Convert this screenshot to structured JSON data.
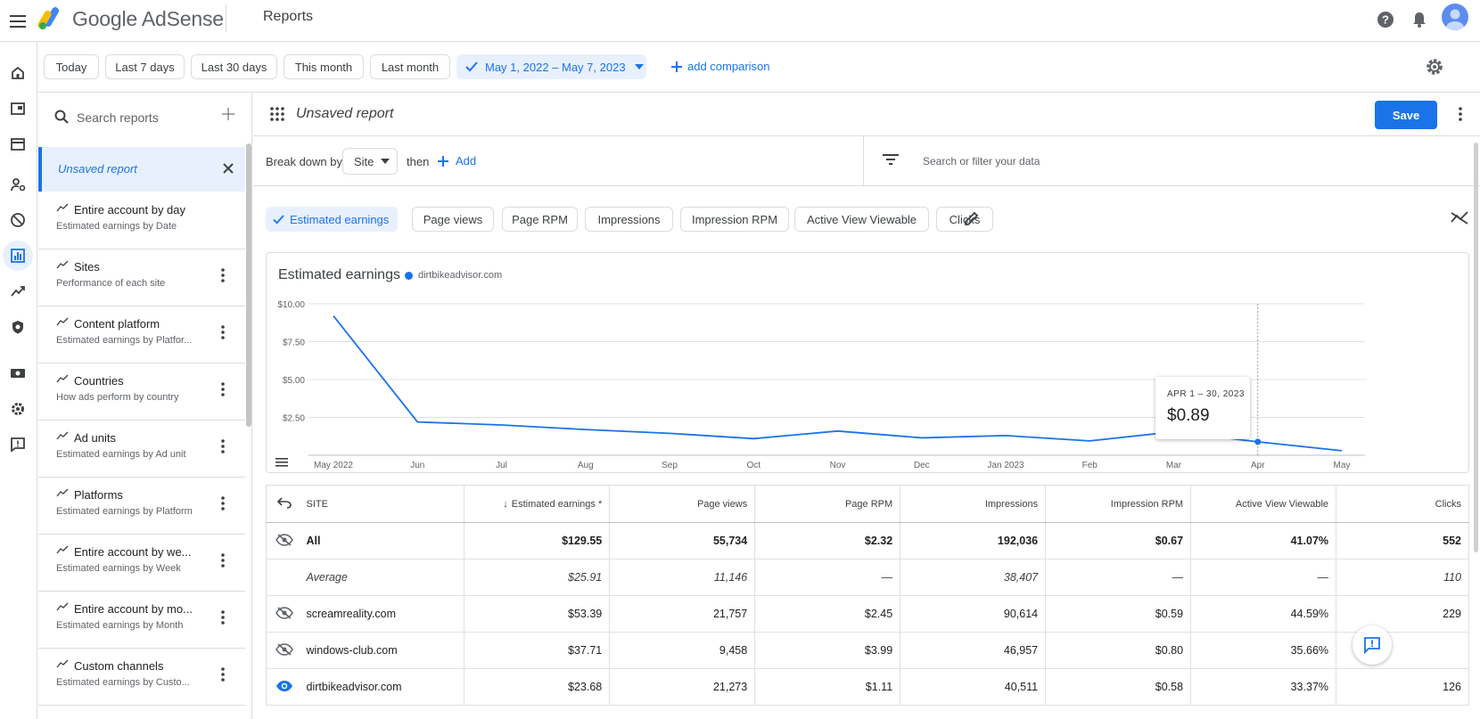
{
  "app": {
    "brand": "Google AdSense",
    "page_title": "Reports"
  },
  "date_bar": {
    "chips": [
      "Today",
      "Last 7 days",
      "Last 30 days",
      "This month",
      "Last month"
    ],
    "selected_range": "May 1, 2022 – May 7, 2023",
    "add_comparison": "add comparison"
  },
  "sidebar": {
    "search_placeholder": "Search reports",
    "active_item": "Unsaved report",
    "items": [
      {
        "title": "Entire account by day",
        "subtitle": "Estimated earnings by Date"
      },
      {
        "title": "Sites",
        "subtitle": "Performance of each site"
      },
      {
        "title": "Content platform",
        "subtitle": "Estimated earnings by Platfor..."
      },
      {
        "title": "Countries",
        "subtitle": "How ads perform by country"
      },
      {
        "title": "Ad units",
        "subtitle": "Estimated earnings by Ad unit"
      },
      {
        "title": "Platforms",
        "subtitle": "Estimated earnings by Platform"
      },
      {
        "title": "Entire account by we...",
        "subtitle": "Estimated earnings by Week"
      },
      {
        "title": "Entire account by mo...",
        "subtitle": "Estimated earnings by Month"
      },
      {
        "title": "Custom channels",
        "subtitle": "Estimated earnings by Custo..."
      }
    ]
  },
  "report": {
    "title": "Unsaved report",
    "save_label": "Save",
    "breakdown_label": "Break down by",
    "breakdown_value": "Site",
    "then_label": "then",
    "add_label": "Add",
    "filter_placeholder": "Search or filter your data"
  },
  "metrics": [
    "Estimated earnings",
    "Page views",
    "Page RPM",
    "Impressions",
    "Impression RPM",
    "Active View Viewable",
    "Clicks"
  ],
  "chart_data": {
    "type": "line",
    "title": "Estimated earnings",
    "series": [
      {
        "name": "dirtbikeadvisor.com",
        "color": "#1a73e8",
        "values": [
          9.2,
          2.2,
          2.0,
          1.7,
          1.45,
          1.1,
          1.6,
          1.15,
          1.3,
          0.95,
          1.55,
          0.89,
          0.3
        ]
      }
    ],
    "x_tick_labels": [
      "May 2022",
      "Jun",
      "Jul",
      "Aug",
      "Sep",
      "Oct",
      "Nov",
      "Dec",
      "Jan 2023",
      "Feb",
      "Mar",
      "Apr",
      "May"
    ],
    "y_ticks": [
      {
        "value": 2.5,
        "label": "$2.50"
      },
      {
        "value": 5.0,
        "label": "$5.00"
      },
      {
        "value": 7.5,
        "label": "$7.50"
      },
      {
        "value": 10.0,
        "label": "$10.00"
      }
    ],
    "ylim": [
      0,
      10
    ],
    "grid": true,
    "highlight_index": 11,
    "tooltip": {
      "date": "APR 1 – 30, 2023",
      "value": "$0.89"
    }
  },
  "table": {
    "columns": [
      "SITE",
      "Estimated earnings *",
      "Page views",
      "Page RPM",
      "Impressions",
      "Impression RPM",
      "Active View Viewable",
      "Clicks"
    ],
    "rows": [
      {
        "site": "All",
        "visibility": "hidden",
        "values": [
          "$129.55",
          "55,734",
          "$2.32",
          "192,036",
          "$0.67",
          "41.07%",
          "552"
        ]
      },
      {
        "site": "Average",
        "visibility": "none",
        "values": [
          "$25.91",
          "11,146",
          "—",
          "38,407",
          "—",
          "—",
          "110"
        ]
      },
      {
        "site": "screamreality.com",
        "visibility": "hidden",
        "values": [
          "$53.39",
          "21,757",
          "$2.45",
          "90,614",
          "$0.59",
          "44.59%",
          "229"
        ]
      },
      {
        "site": "windows-club.com",
        "visibility": "hidden",
        "values": [
          "$37.71",
          "9,458",
          "$3.99",
          "46,957",
          "$0.80",
          "35.66%",
          ""
        ]
      },
      {
        "site": "dirtbikeadvisor.com",
        "visibility": "visible",
        "values": [
          "$23.68",
          "21,273",
          "$1.11",
          "40,511",
          "$0.58",
          "33.37%",
          "126"
        ]
      }
    ]
  }
}
